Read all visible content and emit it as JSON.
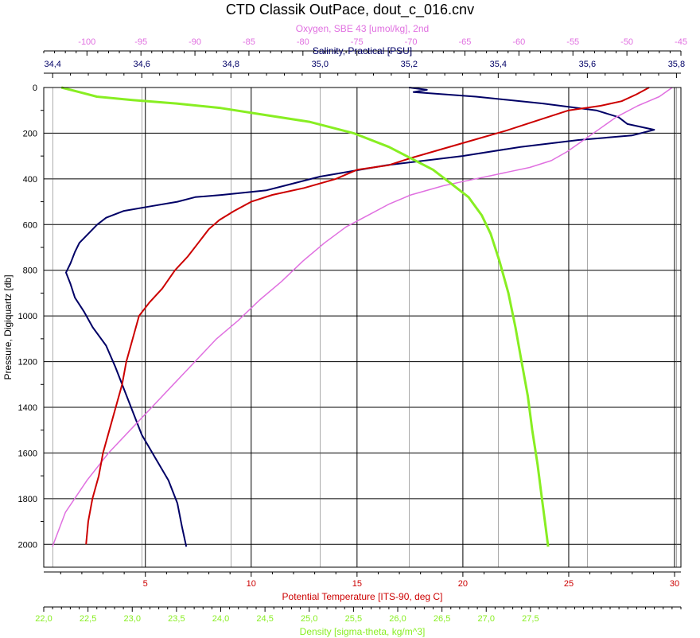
{
  "chart_data": {
    "type": "line",
    "title": "CTD Classik OutPace, dout_c_016.cnv",
    "grid": true,
    "y_axis": {
      "label": "Pressure, Digiquartz [db]",
      "range": [
        2100,
        0
      ],
      "ticks": [
        0,
        200,
        400,
        600,
        800,
        1000,
        1200,
        1400,
        1600,
        1800,
        2000
      ],
      "tick_labels": [
        "0",
        "200",
        "400",
        "600",
        "800",
        "1000",
        "1200",
        "1400",
        "1600",
        "1800",
        "2000"
      ],
      "inverted": true
    },
    "x_axes": [
      {
        "id": "oxygen",
        "label": "Oxygen, SBE 43 [umol/kg], 2nd",
        "position": "top-outer",
        "color": "#e070e0",
        "range": [
          -104,
          -45
        ],
        "ticks": [
          -100,
          -95,
          -90,
          -85,
          -80,
          -75,
          -70,
          -65,
          -60,
          -55,
          -50,
          -45
        ],
        "tick_labels": [
          "-100",
          "-95",
          "-90",
          "-85",
          "-80",
          "-75",
          "-70",
          "-65",
          "-60",
          "-55",
          "-50",
          "-45"
        ]
      },
      {
        "id": "salinity",
        "label": "Salinity, Practical [PSU]",
        "position": "top-inner",
        "color": "#000066",
        "range": [
          34.38,
          35.81
        ],
        "ticks": [
          34.4,
          34.6,
          34.8,
          35.0,
          35.2,
          35.4,
          35.6,
          35.8
        ],
        "tick_labels": [
          "34,4",
          "34,6",
          "34,8",
          "35,0",
          "35,2",
          "35,4",
          "35,6",
          "35,8"
        ]
      },
      {
        "id": "temperature",
        "label": "Potential Temperature [ITS-90, deg C]",
        "position": "bottom-inner",
        "color": "#cc0000",
        "range": [
          0.2,
          30.3
        ],
        "ticks": [
          5,
          10,
          15,
          20,
          25,
          30
        ],
        "tick_labels": [
          "5",
          "10",
          "15",
          "20",
          "25",
          "30"
        ]
      },
      {
        "id": "density",
        "label": "Density [sigma-theta, kg/m^3]",
        "position": "bottom-outer",
        "color": "#88ee22",
        "range": [
          22.0,
          29.2
        ],
        "ticks": [
          22.0,
          22.5,
          23.0,
          23.5,
          24.0,
          24.5,
          25.0,
          25.5,
          26.0,
          26.5,
          27.0,
          27.5
        ],
        "tick_labels": [
          "22,0",
          "22,5",
          "23,0",
          "23,5",
          "24,0",
          "24,5",
          "25,0",
          "25,5",
          "26,0",
          "26,5",
          "27,0",
          "27,5"
        ]
      }
    ],
    "series": [
      {
        "axis": "salinity",
        "color": "#000066",
        "points": [
          [
            35.2,
            0
          ],
          [
            35.24,
            10
          ],
          [
            35.21,
            20
          ],
          [
            35.35,
            40
          ],
          [
            35.5,
            70
          ],
          [
            35.62,
            100
          ],
          [
            35.67,
            130
          ],
          [
            35.69,
            160
          ],
          [
            35.75,
            185
          ],
          [
            35.7,
            210
          ],
          [
            35.58,
            230
          ],
          [
            35.45,
            260
          ],
          [
            35.32,
            300
          ],
          [
            35.15,
            340
          ],
          [
            35.0,
            390
          ],
          [
            34.92,
            430
          ],
          [
            34.88,
            450
          ],
          [
            34.78,
            470
          ],
          [
            34.72,
            480
          ],
          [
            34.68,
            500
          ],
          [
            34.62,
            520
          ],
          [
            34.56,
            540
          ],
          [
            34.52,
            570
          ],
          [
            34.5,
            600
          ],
          [
            34.48,
            640
          ],
          [
            34.46,
            680
          ],
          [
            34.45,
            720
          ],
          [
            34.44,
            770
          ],
          [
            34.43,
            810
          ],
          [
            34.44,
            860
          ],
          [
            34.45,
            920
          ],
          [
            34.47,
            980
          ],
          [
            34.49,
            1050
          ],
          [
            34.52,
            1130
          ],
          [
            34.54,
            1220
          ],
          [
            34.56,
            1320
          ],
          [
            34.58,
            1420
          ],
          [
            34.6,
            1520
          ],
          [
            34.63,
            1620
          ],
          [
            34.66,
            1720
          ],
          [
            34.68,
            1820
          ],
          [
            34.69,
            1920
          ],
          [
            34.7,
            2010
          ]
        ]
      },
      {
        "axis": "oxygen",
        "color": "#e070e0",
        "points": [
          [
            -45.8,
            0
          ],
          [
            -47,
            40
          ],
          [
            -49,
            80
          ],
          [
            -51,
            130
          ],
          [
            -52.5,
            180
          ],
          [
            -54,
            230
          ],
          [
            -55.5,
            280
          ],
          [
            -57,
            320
          ],
          [
            -59,
            350
          ],
          [
            -61,
            370
          ],
          [
            -63,
            390
          ],
          [
            -65,
            410
          ],
          [
            -67,
            430
          ],
          [
            -70,
            470
          ],
          [
            -72,
            510
          ],
          [
            -74,
            560
          ],
          [
            -76,
            610
          ],
          [
            -78,
            680
          ],
          [
            -80,
            760
          ],
          [
            -82,
            850
          ],
          [
            -84,
            930
          ],
          [
            -86,
            1020
          ],
          [
            -88,
            1100
          ],
          [
            -90,
            1200
          ],
          [
            -92,
            1300
          ],
          [
            -94,
            1400
          ],
          [
            -96,
            1500
          ],
          [
            -98,
            1600
          ],
          [
            -100,
            1720
          ],
          [
            -102,
            1860
          ],
          [
            -103.2,
            2010
          ]
        ]
      },
      {
        "axis": "temperature",
        "color": "#cc0000",
        "points": [
          [
            28.8,
            0
          ],
          [
            28.2,
            30
          ],
          [
            27.5,
            60
          ],
          [
            26.5,
            80
          ],
          [
            25,
            100
          ],
          [
            24,
            130
          ],
          [
            23,
            160
          ],
          [
            22,
            190
          ],
          [
            20.5,
            230
          ],
          [
            19,
            270
          ],
          [
            17.5,
            310
          ],
          [
            16.5,
            340
          ],
          [
            15,
            360
          ],
          [
            14,
            400
          ],
          [
            12.5,
            440
          ],
          [
            11,
            470
          ],
          [
            10,
            500
          ],
          [
            9.2,
            540
          ],
          [
            8.5,
            580
          ],
          [
            8,
            620
          ],
          [
            7.5,
            680
          ],
          [
            7,
            740
          ],
          [
            6.4,
            800
          ],
          [
            5.8,
            880
          ],
          [
            5.2,
            940
          ],
          [
            4.7,
            1000
          ],
          [
            4.4,
            1100
          ],
          [
            4.1,
            1200
          ],
          [
            3.9,
            1300
          ],
          [
            3.6,
            1400
          ],
          [
            3.3,
            1500
          ],
          [
            3.0,
            1600
          ],
          [
            2.8,
            1700
          ],
          [
            2.5,
            1800
          ],
          [
            2.3,
            1900
          ],
          [
            2.2,
            2000
          ]
        ]
      },
      {
        "axis": "density",
        "color": "#88ee22",
        "points": [
          [
            22.2,
            0
          ],
          [
            22.4,
            20
          ],
          [
            22.6,
            40
          ],
          [
            23.0,
            55
          ],
          [
            23.5,
            70
          ],
          [
            24.0,
            90
          ],
          [
            24.5,
            120
          ],
          [
            25.0,
            150
          ],
          [
            25.5,
            200
          ],
          [
            25.9,
            260
          ],
          [
            26.2,
            320
          ],
          [
            26.4,
            360
          ],
          [
            26.6,
            420
          ],
          [
            26.8,
            480
          ],
          [
            26.95,
            560
          ],
          [
            27.05,
            640
          ],
          [
            27.15,
            760
          ],
          [
            27.25,
            900
          ],
          [
            27.33,
            1050
          ],
          [
            27.4,
            1200
          ],
          [
            27.47,
            1350
          ],
          [
            27.52,
            1500
          ],
          [
            27.58,
            1650
          ],
          [
            27.63,
            1800
          ],
          [
            27.67,
            1920
          ],
          [
            27.7,
            2010
          ]
        ]
      }
    ]
  }
}
